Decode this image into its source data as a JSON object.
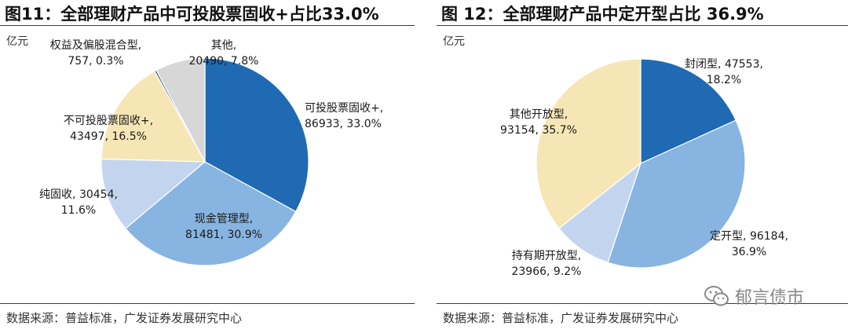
{
  "colors": {
    "dark_blue": "#1f6ab3",
    "medium_blue": "#87b4e0",
    "light_blue": "#c3d5ee",
    "beige": "#f6e6b6",
    "grey": "#d7d7d7",
    "rule": "#1a3f7a"
  },
  "panels": [
    {
      "title": "图11：全部理财产品中可投股票固收+占比33.0%",
      "unit": "亿元",
      "source": "数据来源：普益标准，广发证券发展研究中心"
    },
    {
      "title": "图 12：全部理财产品中定开型占比 36.9%",
      "unit": "亿元",
      "source": "数据来源：普益标准，广发证券发展研究中心"
    }
  ],
  "chart_data": [
    {
      "type": "pie",
      "unit": "亿元",
      "slices": [
        {
          "label": "可投股票固收+",
          "value": 86933,
          "percent": "33.0%",
          "value_text": "86933, 33.0%",
          "color": "#1f6ab3"
        },
        {
          "label": "现金管理型",
          "value": 81481,
          "percent": "30.9%",
          "value_text": "81481, 30.9%",
          "color": "#87b4e0"
        },
        {
          "label": "纯固收",
          "value": 30454,
          "percent": "11.6%",
          "value_text": "30454,",
          "value_text2": "11.6%",
          "color": "#c3d5ee"
        },
        {
          "label": "不可投股票固收+",
          "value": 43497,
          "percent": "16.5%",
          "value_text": "43497, 16.5%",
          "color": "#f6e6b6"
        },
        {
          "label": "权益及偏股混合型",
          "value": 757,
          "percent": "0.3%",
          "value_text": "757, 0.3%",
          "color": "#1f3f6b"
        },
        {
          "label": "其他",
          "value": 20490,
          "percent": "7.8%",
          "value_text": "20490, 7.8%",
          "color": "#d7d7d7"
        }
      ]
    },
    {
      "type": "pie",
      "unit": "亿元",
      "slices": [
        {
          "label": "封闭型",
          "value": 47553,
          "percent": "18.2%",
          "value_text": "47553,",
          "value_text2": "18.2%",
          "color": "#1f6ab3"
        },
        {
          "label": "定开型",
          "value": 96184,
          "percent": "36.9%",
          "value_text": "96184,",
          "value_text2": "36.9%",
          "color": "#87b4e0"
        },
        {
          "label": "持有期开放型",
          "value": 23966,
          "percent": "9.2%",
          "value_text": "23966, 9.2%",
          "color": "#c3d5ee"
        },
        {
          "label": "其他开放型",
          "value": 93154,
          "percent": "35.7%",
          "value_text": "93154, 35.7%",
          "color": "#f6e6b6"
        }
      ]
    }
  ],
  "watermark": {
    "text": "郁言债市",
    "icon": "wechat-icon"
  }
}
